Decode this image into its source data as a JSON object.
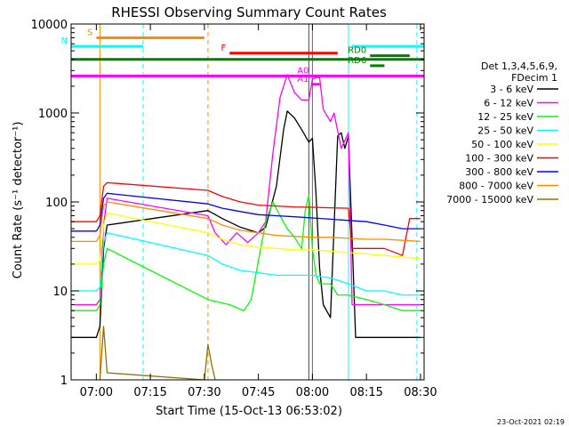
{
  "chart_data": {
    "type": "line",
    "title": "RHESSI Observing Summary Count Rates",
    "xlabel": "Start Time (15-Oct-13 06:53:02)",
    "ylabel": "Count Rate (s⁻¹ detector⁻¹)",
    "yscale": "log",
    "xlim": [
      "06:53",
      "08:31"
    ],
    "ylim": [
      1,
      10000
    ],
    "x_ticks": [
      "07:00",
      "07:15",
      "07:30",
      "07:45",
      "08:00",
      "08:15",
      "08:30"
    ],
    "y_ticks": [
      "1",
      "10",
      "100",
      "1000",
      "10000"
    ],
    "grid": false,
    "legend_position": "right",
    "legend_header": [
      "Det 1,3,4,5,6,9,",
      "FDecim 1"
    ],
    "timestamp": "23-Oct-2021 02:19",
    "series": [
      {
        "name": "3 - 6 keV",
        "color": "#000000",
        "points": [
          [
            "06:53",
            3
          ],
          [
            "07:00",
            3
          ],
          [
            "07:01",
            4
          ],
          [
            "07:02",
            30
          ],
          [
            "07:03",
            55
          ],
          [
            "07:31",
            80
          ],
          [
            "07:35",
            65
          ],
          [
            "07:40",
            52
          ],
          [
            "07:45",
            45
          ],
          [
            "07:47",
            52
          ],
          [
            "07:50",
            150
          ],
          [
            "07:52",
            650
          ],
          [
            "07:53",
            1050
          ],
          [
            "07:55",
            880
          ],
          [
            "07:57",
            650
          ],
          [
            "07:59",
            470
          ],
          [
            "08:00",
            520
          ],
          [
            "08:01",
            120
          ],
          [
            "08:02",
            18
          ],
          [
            "08:03",
            7
          ],
          [
            "08:05",
            5
          ],
          [
            "08:07",
            550
          ],
          [
            "08:08",
            600
          ],
          [
            "08:09",
            400
          ],
          [
            "08:10",
            550
          ],
          [
            "08:12",
            3
          ],
          [
            "08:30",
            3
          ]
        ]
      },
      {
        "name": "6 - 12 keV",
        "color": "#ff00ff",
        "points": [
          [
            "06:53",
            7
          ],
          [
            "07:00",
            7
          ],
          [
            "07:01",
            8
          ],
          [
            "07:02",
            55
          ],
          [
            "07:03",
            110
          ],
          [
            "07:31",
            70
          ],
          [
            "07:33",
            45
          ],
          [
            "07:36",
            33
          ],
          [
            "07:39",
            45
          ],
          [
            "07:42",
            35
          ],
          [
            "07:45",
            45
          ],
          [
            "07:47",
            60
          ],
          [
            "07:49",
            350
          ],
          [
            "07:51",
            1500
          ],
          [
            "07:53",
            2700
          ],
          [
            "07:55",
            1700
          ],
          [
            "07:57",
            1400
          ],
          [
            "07:59",
            1400
          ],
          [
            "08:00",
            2400
          ],
          [
            "08:01",
            2500
          ],
          [
            "08:02",
            2500
          ],
          [
            "08:03",
            1100
          ],
          [
            "08:05",
            800
          ],
          [
            "08:06",
            1000
          ],
          [
            "08:08",
            400
          ],
          [
            "08:10",
            600
          ],
          [
            "08:11",
            7
          ],
          [
            "08:30",
            7
          ]
        ]
      },
      {
        "name": "12 - 25 keV",
        "color": "#00ff00",
        "points": [
          [
            "06:53",
            6
          ],
          [
            "07:00",
            6
          ],
          [
            "07:01",
            7
          ],
          [
            "07:02",
            20
          ],
          [
            "07:03",
            30
          ],
          [
            "07:31",
            8
          ],
          [
            "07:37",
            7
          ],
          [
            "07:41",
            6
          ],
          [
            "07:43",
            8
          ],
          [
            "07:47",
            60
          ],
          [
            "07:49",
            100
          ],
          [
            "07:51",
            70
          ],
          [
            "07:53",
            50
          ],
          [
            "07:55",
            40
          ],
          [
            "07:57",
            30
          ],
          [
            "07:58",
            80
          ],
          [
            "07:59",
            120
          ],
          [
            "08:00",
            30
          ],
          [
            "08:01",
            15
          ],
          [
            "08:02",
            12
          ],
          [
            "08:05",
            12
          ],
          [
            "08:07",
            9
          ],
          [
            "08:10",
            9
          ],
          [
            "08:15",
            8
          ],
          [
            "08:20",
            7
          ],
          [
            "08:25",
            6
          ],
          [
            "08:30",
            6
          ]
        ]
      },
      {
        "name": "25 - 50 keV",
        "color": "#00ffff",
        "points": [
          [
            "06:53",
            10
          ],
          [
            "07:00",
            10
          ],
          [
            "07:01",
            11
          ],
          [
            "07:02",
            35
          ],
          [
            "07:03",
            45
          ],
          [
            "07:31",
            25
          ],
          [
            "07:35",
            20
          ],
          [
            "07:40",
            17
          ],
          [
            "07:45",
            16
          ],
          [
            "07:50",
            15
          ],
          [
            "07:55",
            15
          ],
          [
            "08:00",
            15
          ],
          [
            "08:05",
            14
          ],
          [
            "08:10",
            12
          ],
          [
            "08:15",
            10
          ],
          [
            "08:20",
            10
          ],
          [
            "08:25",
            9
          ],
          [
            "08:30",
            9
          ]
        ]
      },
      {
        "name": "50 - 100 keV",
        "color": "#ffff00",
        "points": [
          [
            "06:53",
            20
          ],
          [
            "07:00",
            20
          ],
          [
            "07:01",
            22
          ],
          [
            "07:02",
            55
          ],
          [
            "07:03",
            75
          ],
          [
            "07:31",
            45
          ],
          [
            "07:35",
            38
          ],
          [
            "07:40",
            33
          ],
          [
            "07:45",
            31
          ],
          [
            "07:50",
            30
          ],
          [
            "07:55",
            29
          ],
          [
            "08:00",
            29
          ],
          [
            "08:05",
            28
          ],
          [
            "08:10",
            27
          ],
          [
            "08:15",
            26
          ],
          [
            "08:20",
            25
          ],
          [
            "08:25",
            24
          ],
          [
            "08:30",
            23
          ]
        ]
      },
      {
        "name": "100 - 300 keV",
        "color": "#ff0000",
        "points": [
          [
            "06:53",
            60
          ],
          [
            "07:00",
            60
          ],
          [
            "07:01",
            70
          ],
          [
            "07:02",
            150
          ],
          [
            "07:03",
            165
          ],
          [
            "07:31",
            135
          ],
          [
            "07:35",
            115
          ],
          [
            "07:40",
            100
          ],
          [
            "07:45",
            92
          ],
          [
            "07:50",
            90
          ],
          [
            "07:55",
            88
          ],
          [
            "08:00",
            87
          ],
          [
            "08:05",
            86
          ],
          [
            "08:10",
            85
          ],
          [
            "08:11",
            30
          ],
          [
            "08:15",
            30
          ],
          [
            "08:20",
            30
          ],
          [
            "08:25",
            25
          ],
          [
            "08:27",
            65
          ],
          [
            "08:30",
            65
          ]
        ]
      },
      {
        "name": "300 - 800 keV",
        "color": "#0000ff",
        "points": [
          [
            "06:53",
            47
          ],
          [
            "07:00",
            47
          ],
          [
            "07:01",
            55
          ],
          [
            "07:02",
            110
          ],
          [
            "07:03",
            125
          ],
          [
            "07:31",
            95
          ],
          [
            "07:35",
            85
          ],
          [
            "07:40",
            78
          ],
          [
            "07:45",
            72
          ],
          [
            "07:50",
            70
          ],
          [
            "07:55",
            68
          ],
          [
            "08:00",
            66
          ],
          [
            "08:05",
            64
          ],
          [
            "08:10",
            62
          ],
          [
            "08:15",
            60
          ],
          [
            "08:20",
            55
          ],
          [
            "08:25",
            50
          ],
          [
            "08:30",
            50
          ]
        ]
      },
      {
        "name": "800 - 7000 keV",
        "color": "#ff8c00",
        "points": [
          [
            "06:53",
            36
          ],
          [
            "07:00",
            36
          ],
          [
            "07:01",
            42
          ],
          [
            "07:02",
            90
          ],
          [
            "07:03",
            100
          ],
          [
            "07:31",
            65
          ],
          [
            "07:35",
            55
          ],
          [
            "07:40",
            48
          ],
          [
            "07:45",
            45
          ],
          [
            "07:50",
            42
          ],
          [
            "07:55",
            41
          ],
          [
            "08:00",
            40
          ],
          [
            "08:05",
            40
          ],
          [
            "08:10",
            39
          ],
          [
            "08:15",
            38
          ],
          [
            "08:20",
            38
          ],
          [
            "08:25",
            37
          ],
          [
            "08:30",
            36
          ]
        ]
      },
      {
        "name": "7000 - 15000 keV",
        "color": "#8b7500",
        "points": [
          [
            "07:01",
            1
          ],
          [
            "07:02",
            4
          ],
          [
            "07:03",
            1.2
          ],
          [
            "07:30",
            1
          ],
          [
            "07:31",
            2.5
          ],
          [
            "07:32",
            1.5
          ],
          [
            "07:33",
            1
          ]
        ]
      }
    ],
    "annotations": [
      {
        "label": "S",
        "color": "#ff8c00",
        "x0": "07:00",
        "x1": "07:30",
        "y": 7000
      },
      {
        "label": "N",
        "color": "#00ffff",
        "x0": "06:53",
        "x1": "07:13",
        "y": 5600
      },
      {
        "label": "F",
        "color": "#ff0000",
        "x0": "07:37",
        "x1": "08:07",
        "y": 4700
      },
      {
        "label": "",
        "color": "#00ffff",
        "x0": "08:11",
        "x1": "08:31",
        "y": 5600
      },
      {
        "label": "",
        "color": "#008000",
        "x0": "06:53",
        "x1": "08:31",
        "y": 4000
      },
      {
        "label": "RD0",
        "color": "#008000",
        "x0": "08:16",
        "x1": "08:27",
        "y": 4400
      },
      {
        "label": "RD6",
        "color": "#008000",
        "x0": "08:16",
        "x1": "08:20",
        "y": 3400
      },
      {
        "label": "",
        "color": "#ff00ff",
        "x0": "06:53",
        "x1": "08:31",
        "y": 2600
      },
      {
        "label": "A0",
        "color": "#ff00ff",
        "x0": "08:00",
        "x1": "08:02",
        "y": 2600
      },
      {
        "label": "A1",
        "color": "#ff00ff",
        "x0": "08:00",
        "x1": "08:02",
        "y": 2100
      }
    ],
    "vlines": [
      {
        "x": "06:53",
        "color": "#00ffff",
        "dash": false
      },
      {
        "x": "07:01",
        "color": "#ff8c00",
        "dash": false
      },
      {
        "x": "07:13",
        "color": "#00ffff",
        "dash": true
      },
      {
        "x": "07:31",
        "color": "#ff8c00",
        "dash": true
      },
      {
        "x": "07:59",
        "color": "#008000",
        "dash": false
      },
      {
        "x": "08:00",
        "color": "#ff00ff",
        "dash": false
      },
      {
        "x": "08:10",
        "color": "#00ffff",
        "dash": false
      },
      {
        "x": "08:29",
        "color": "#00ffff",
        "dash": true
      }
    ]
  }
}
